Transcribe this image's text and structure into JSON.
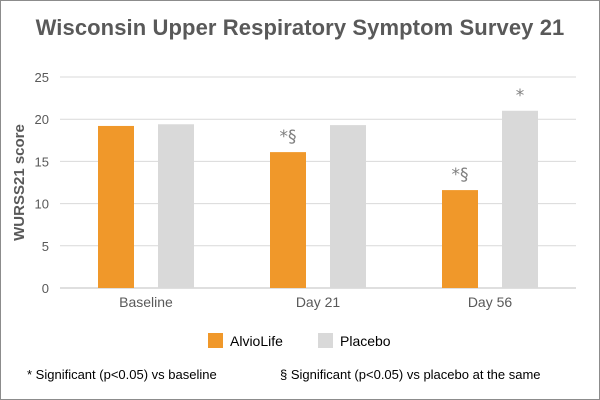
{
  "chart_data": {
    "type": "bar",
    "title": "Wisconsin Upper Respiratory Symptom Survey 21",
    "ylabel": "WURSS21 score",
    "xlabel": "",
    "categories": [
      "Baseline",
      "Day 21",
      "Day 56"
    ],
    "series": [
      {
        "name": "AlvioLife",
        "values": [
          19.2,
          16.1,
          11.6
        ],
        "color": "#f0982a",
        "annotations": [
          "",
          "*§",
          "*§"
        ]
      },
      {
        "name": "Placebo",
        "values": [
          19.4,
          19.3,
          21.0
        ],
        "color": "#d9d9d9",
        "annotations": [
          "",
          "",
          "*"
        ]
      }
    ],
    "ylim": [
      0,
      25
    ],
    "yticks": [
      0,
      5,
      10,
      15,
      20,
      25
    ],
    "grid": true,
    "legend": "bottom"
  },
  "footnotes": {
    "left": "* Significant (p<0.05) vs baseline",
    "right": "§ Significant (p<0.05) vs placebo at the same"
  },
  "colors": {
    "title": "#595959",
    "axis_text": "#595959",
    "gridline": "#d9d9d9",
    "annotation": "#7f7f7f"
  }
}
